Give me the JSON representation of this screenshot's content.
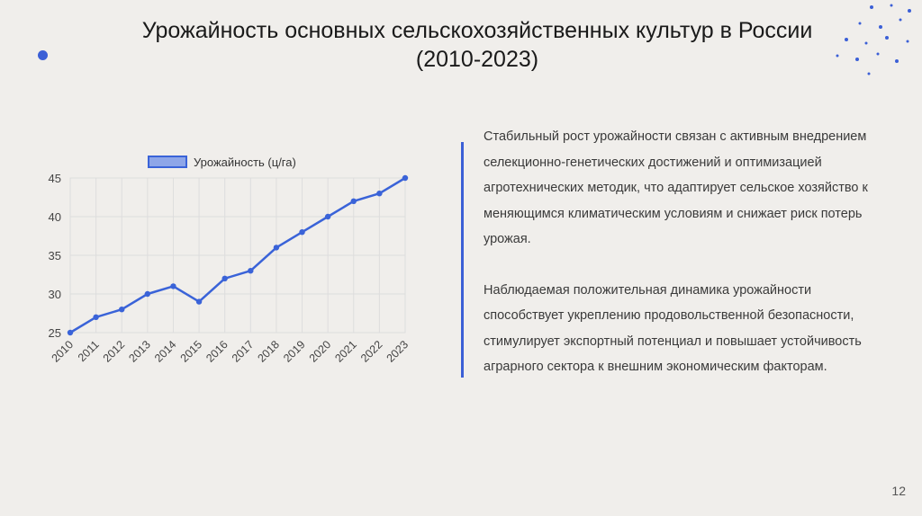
{
  "slide": {
    "title_line1": "Урожайность основных сельскохозяйственных культур в России",
    "title_line2": "(2010-2023)",
    "paragraph1": "Стабильный рост урожайности связан с активным внедрением селекционно-генетических достижений и оптимизацией агротехнических методик, что адаптирует сельское хозяйство к меняющимся климатическим условиям и снижает риск потерь урожая.",
    "paragraph2": "Наблюдаемая положительная динамика урожайности способствует укреплению продовольственной безопасности, стимулирует экспортный потенциал и повышает устойчивость аграрного сектора к внешним экономическим факторам.",
    "page_number": "12"
  },
  "colors": {
    "accent": "#3b5fd6",
    "line": "#3a63d8",
    "legend_fill": "#8ea6e8",
    "grid": "#dddddd"
  },
  "chart_data": {
    "type": "line",
    "x": [
      "2010",
      "2011",
      "2012",
      "2013",
      "2014",
      "2015",
      "2016",
      "2017",
      "2018",
      "2019",
      "2020",
      "2021",
      "2022",
      "2023"
    ],
    "series": [
      {
        "name": "Урожайность (ц/га)",
        "values": [
          25,
          27,
          28,
          30,
          31,
          29,
          32,
          33,
          36,
          38,
          40,
          42,
          43,
          45
        ]
      }
    ],
    "yticks": [
      "25",
      "30",
      "35",
      "40",
      "45"
    ],
    "ylim": [
      25,
      45
    ],
    "grid": true,
    "legend": "top"
  }
}
